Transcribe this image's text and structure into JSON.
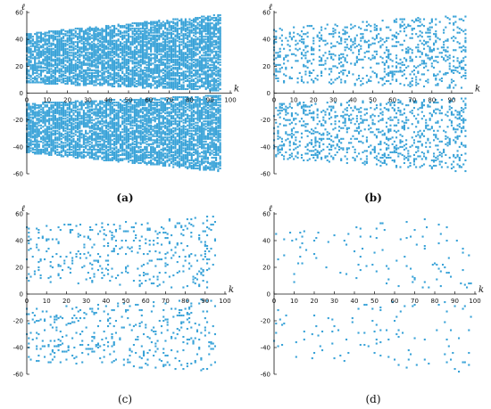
{
  "colors": {
    "points": "#3aa3d8",
    "axis": "#111111"
  },
  "chart_data": [
    {
      "type": "scatter",
      "panel_label": "(a)",
      "label_bold": true,
      "xlabel": "k",
      "ylabel": "ℓ",
      "xlim": [
        0,
        100
      ],
      "ylim": [
        -60,
        60
      ],
      "x_ticks": [
        "0",
        "10",
        "20",
        "30",
        "40",
        "50",
        "60",
        "70",
        "80",
        "90",
        "100"
      ],
      "y_ticks": [
        "60",
        "40",
        "20",
        "0",
        "-20",
        "-40",
        "-60"
      ],
      "density": 0.7,
      "y_range_profile": {
        "at_x0": [
          8,
          44
        ],
        "at_x95": [
          2,
          58
        ]
      },
      "x_max": 95,
      "seed": 11
    },
    {
      "type": "scatter",
      "panel_label": "(b)",
      "label_bold": true,
      "xlabel": "k",
      "ylabel": "ℓ",
      "xlim": [
        0,
        100
      ],
      "ylim": [
        -60,
        60
      ],
      "x_ticks": [
        "0",
        "10",
        "20",
        "30",
        "40",
        "50",
        "60",
        "70",
        "80",
        "90"
      ],
      "y_ticks": [
        "60",
        "40",
        "20",
        "0",
        "-20",
        "-40",
        "-60"
      ],
      "density": 0.17,
      "y_range_profile": {
        "at_x0": [
          8,
          48
        ],
        "at_x95": [
          4,
          58
        ]
      },
      "x_max": 97,
      "seed": 23
    },
    {
      "type": "scatter",
      "panel_label": "(c)",
      "label_bold": false,
      "xlabel": "k",
      "ylabel": "ℓ",
      "xlim": [
        0,
        100
      ],
      "ylim": [
        -60,
        60
      ],
      "x_ticks": [
        "0",
        "10",
        "20",
        "30",
        "40",
        "50",
        "60",
        "70",
        "80",
        "90",
        "100"
      ],
      "y_ticks": [
        "60",
        "40",
        "20",
        "0",
        "-20",
        "-40",
        "-60"
      ],
      "density": 0.08,
      "y_range_profile": {
        "at_x0": [
          10,
          50
        ],
        "at_x95": [
          4,
          58
        ]
      },
      "x_max": 95,
      "seed": 37
    },
    {
      "type": "scatter",
      "panel_label": "(d)",
      "label_bold": false,
      "xlabel": "k",
      "ylabel": "ℓ",
      "xlim": [
        0,
        100
      ],
      "ylim": [
        -60,
        60
      ],
      "x_ticks": [
        "0",
        "10",
        "20",
        "30",
        "40",
        "50",
        "60",
        "70",
        "80",
        "90",
        "100"
      ],
      "y_ticks": [
        "60",
        "40",
        "20",
        "0",
        "-20",
        "-40",
        "-60"
      ],
      "density": 0.022,
      "y_range_profile": {
        "at_x0": [
          10,
          48
        ],
        "at_x95": [
          4,
          58
        ]
      },
      "x_max": 98,
      "seed": 51
    }
  ]
}
